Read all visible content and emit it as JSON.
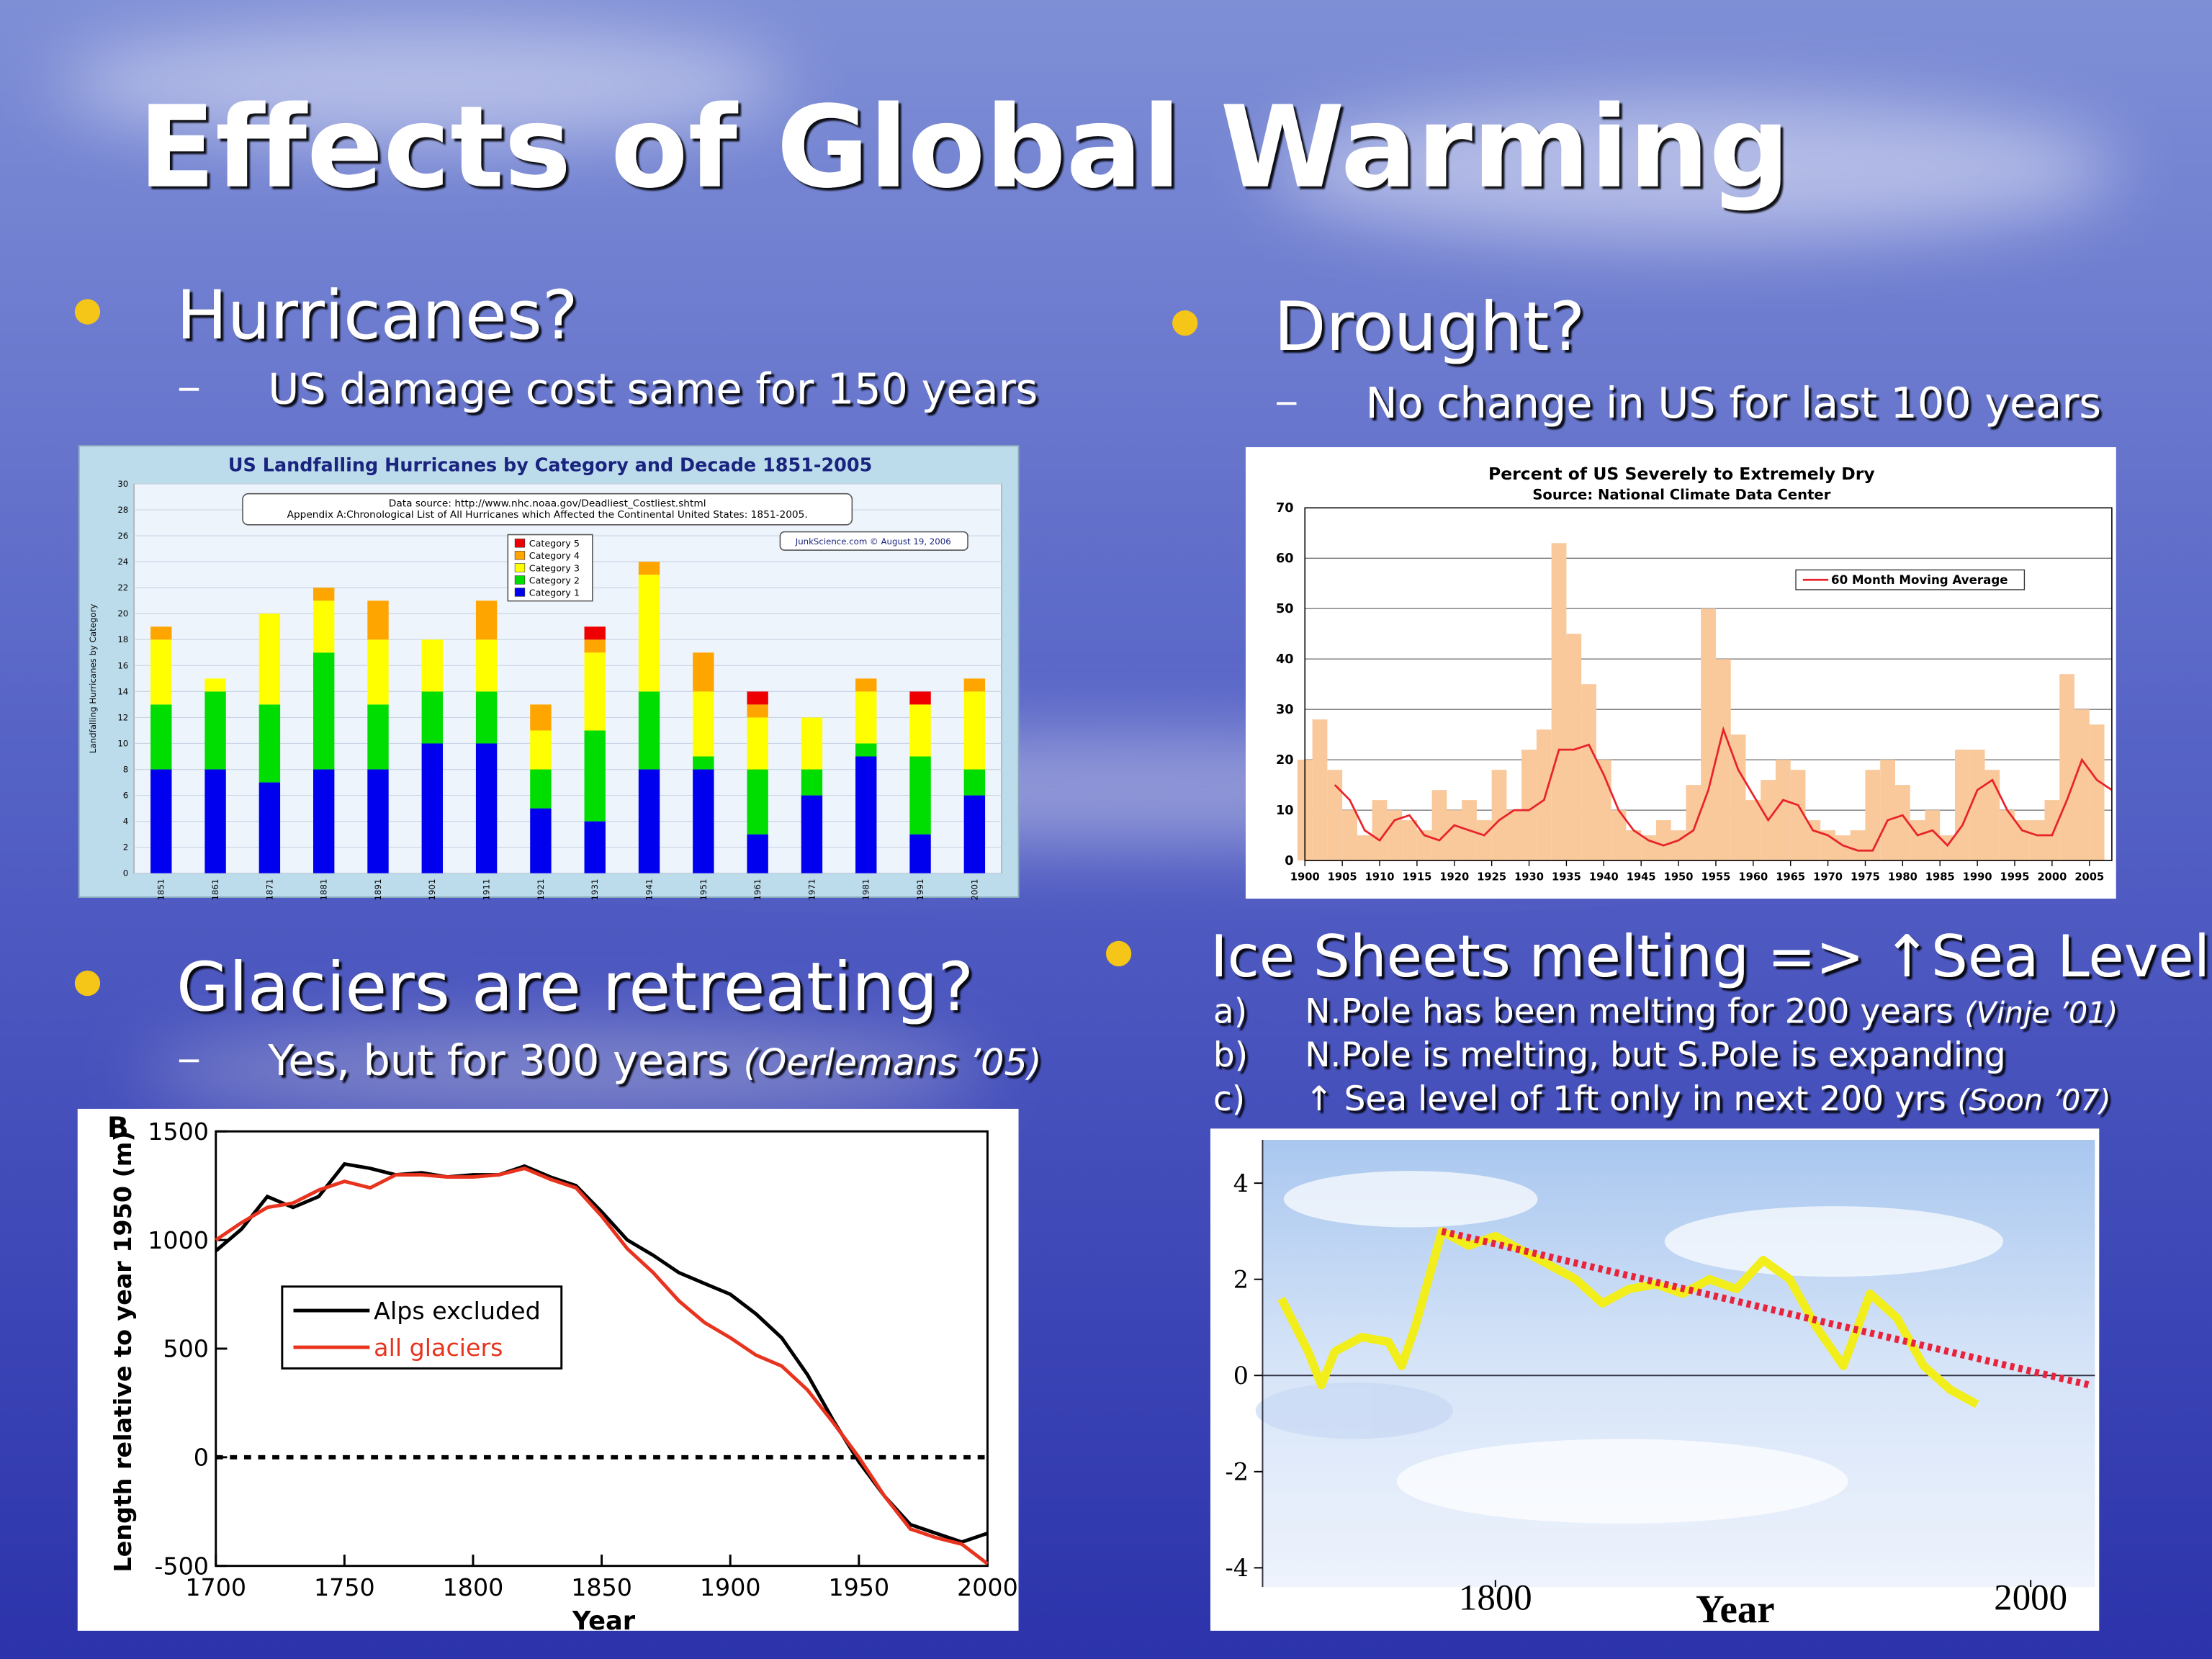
{
  "slide": {
    "title": "Effects of Global Warming",
    "bullets": [
      {
        "text": "Hurricanes?",
        "sub": "US damage cost same for 150 years"
      },
      {
        "text": "Drought?",
        "sub": "No change in US for last 100 years"
      },
      {
        "text": "Glaciers are retreating?",
        "sub": "Yes, but for 300 years",
        "cite": "(Oerlemans ’05)"
      },
      {
        "text": "Ice Sheets melting => ↑Sea Levels?",
        "items": [
          {
            "marker": "a)",
            "text": "N.Pole has been melting for 200 years",
            "cite": "(Vinje ’01)"
          },
          {
            "marker": "b)",
            "text": "N.Pole is melting, but S.Pole is expanding"
          },
          {
            "marker": "c)",
            "text": "↑ Sea level of 1ft only in next 200 yrs",
            "cite": "(Soon ’07)"
          }
        ]
      }
    ]
  },
  "chart_data": [
    {
      "type": "bar",
      "stacked": true,
      "title": "US Landfalling Hurricanes by Category and Decade 1851-2005",
      "notes": [
        "Data source: http://www.nhc.noaa.gov/Deadliest_Costliest.shtml",
        "Appendix A:Chronological List of All Hurricanes which Affected the Continental United States: 1851-2005."
      ],
      "credit": "JunkScience.com © August 19, 2006",
      "ylabel": "Landfalling Hurricanes by Category",
      "categories": [
        "1851",
        "1861",
        "1871",
        "1881",
        "1891",
        "1901",
        "1911",
        "1921",
        "1931",
        "1941",
        "1951",
        "1961",
        "1971",
        "1981",
        "1991",
        "2001"
      ],
      "series": [
        {
          "name": "Category 1",
          "color": "#0000ee",
          "values": [
            8,
            8,
            7,
            8,
            8,
            10,
            10,
            5,
            4,
            8,
            8,
            3,
            6,
            9,
            3,
            6
          ]
        },
        {
          "name": "Category 2",
          "color": "#00dd00",
          "values": [
            5,
            6,
            6,
            9,
            5,
            4,
            4,
            3,
            7,
            6,
            1,
            5,
            2,
            1,
            6,
            2
          ]
        },
        {
          "name": "Category 3",
          "color": "#ffff00",
          "values": [
            5,
            1,
            7,
            4,
            5,
            4,
            4,
            3,
            6,
            9,
            5,
            4,
            4,
            4,
            4,
            6
          ]
        },
        {
          "name": "Category 4",
          "color": "#ffa500",
          "values": [
            1,
            0,
            0,
            1,
            3,
            0,
            3,
            2,
            1,
            1,
            3,
            1,
            0,
            1,
            0,
            1
          ]
        },
        {
          "name": "Category 5",
          "color": "#ee0000",
          "values": [
            0,
            0,
            0,
            0,
            0,
            0,
            0,
            0,
            1,
            0,
            0,
            1,
            0,
            0,
            1,
            0
          ]
        }
      ],
      "ylim": [
        0,
        30
      ],
      "yticks": [
        0,
        2,
        4,
        6,
        8,
        10,
        12,
        14,
        16,
        18,
        20,
        22,
        24,
        26,
        28,
        30
      ],
      "grid": true
    },
    {
      "type": "line",
      "title": "Percent of US Severely to Extremely Dry",
      "subtitle": "Source:  National Climate Data Center",
      "background_bars": {
        "color": "#f9c89b",
        "x": [
          1900,
          1902,
          1904,
          1906,
          1908,
          1910,
          1912,
          1914,
          1916,
          1918,
          1920,
          1922,
          1924,
          1926,
          1928,
          1930,
          1932,
          1934,
          1936,
          1938,
          1940,
          1942,
          1944,
          1946,
          1948,
          1950,
          1952,
          1954,
          1956,
          1958,
          1960,
          1962,
          1964,
          1966,
          1968,
          1970,
          1972,
          1974,
          1976,
          1978,
          1980,
          1982,
          1984,
          1986,
          1988,
          1990,
          1992,
          1994,
          1996,
          1998,
          2000,
          2002,
          2004,
          2006
        ],
        "values": [
          20,
          28,
          18,
          10,
          5,
          12,
          10,
          8,
          6,
          14,
          10,
          12,
          8,
          18,
          10,
          22,
          26,
          63,
          45,
          35,
          20,
          10,
          6,
          5,
          8,
          6,
          15,
          50,
          40,
          25,
          12,
          16,
          20,
          18,
          8,
          6,
          5,
          6,
          18,
          20,
          15,
          8,
          10,
          5,
          22,
          22,
          18,
          10,
          8,
          8,
          12,
          37,
          30,
          27
        ]
      },
      "series": [
        {
          "name": "60 Month Moving Average",
          "color": "#e8232a",
          "x": [
            1904,
            1906,
            1908,
            1910,
            1912,
            1914,
            1916,
            1918,
            1920,
            1922,
            1924,
            1926,
            1928,
            1930,
            1932,
            1934,
            1936,
            1938,
            1940,
            1942,
            1944,
            1946,
            1948,
            1950,
            1952,
            1954,
            1956,
            1958,
            1960,
            1962,
            1964,
            1966,
            1968,
            1970,
            1972,
            1974,
            1976,
            1978,
            1980,
            1982,
            1984,
            1986,
            1988,
            1990,
            1992,
            1994,
            1996,
            1998,
            2000,
            2002,
            2004,
            2006,
            2008
          ],
          "values": [
            15,
            12,
            6,
            4,
            8,
            9,
            5,
            4,
            7,
            6,
            5,
            8,
            10,
            10,
            12,
            22,
            22,
            23,
            17,
            10,
            6,
            4,
            3,
            4,
            6,
            14,
            26,
            18,
            13,
            8,
            12,
            11,
            6,
            5,
            3,
            2,
            2,
            8,
            9,
            5,
            6,
            3,
            7,
            14,
            16,
            10,
            6,
            5,
            5,
            12,
            20,
            16,
            14
          ]
        }
      ],
      "xlim": [
        1900,
        2008
      ],
      "xticks": [
        1900,
        1905,
        1910,
        1915,
        1920,
        1925,
        1930,
        1935,
        1940,
        1945,
        1950,
        1955,
        1960,
        1965,
        1970,
        1975,
        1980,
        1985,
        1990,
        1995,
        2000,
        2005
      ],
      "ylim": [
        0,
        70
      ],
      "yticks": [
        0,
        10,
        20,
        30,
        40,
        50,
        60,
        70
      ],
      "grid": true
    },
    {
      "type": "line",
      "panel": "B",
      "ylabel": "Length relative to year 1950 (m)",
      "xlabel": "Year",
      "series": [
        {
          "name": "Alps excluded",
          "color": "#000000",
          "x": [
            1700,
            1710,
            1720,
            1730,
            1740,
            1750,
            1760,
            1770,
            1780,
            1790,
            1800,
            1810,
            1820,
            1830,
            1840,
            1850,
            1860,
            1870,
            1880,
            1890,
            1900,
            1910,
            1920,
            1930,
            1940,
            1950,
            1960,
            1970,
            1980,
            1990,
            2000
          ],
          "values": [
            950,
            1050,
            1200,
            1150,
            1200,
            1350,
            1330,
            1300,
            1310,
            1290,
            1300,
            1300,
            1340,
            1290,
            1250,
            1130,
            1000,
            930,
            850,
            800,
            750,
            660,
            550,
            380,
            170,
            -20,
            -180,
            -310,
            -350,
            -390,
            -350
          ]
        },
        {
          "name": "all glaciers",
          "color": "#e8331e",
          "x": [
            1700,
            1710,
            1720,
            1730,
            1740,
            1750,
            1760,
            1770,
            1780,
            1790,
            1800,
            1810,
            1820,
            1830,
            1840,
            1850,
            1860,
            1870,
            1880,
            1890,
            1900,
            1910,
            1920,
            1930,
            1940,
            1950,
            1960,
            1970,
            1980,
            1990,
            2000
          ],
          "values": [
            1000,
            1080,
            1150,
            1170,
            1230,
            1270,
            1240,
            1300,
            1300,
            1290,
            1290,
            1300,
            1330,
            1280,
            1240,
            1110,
            960,
            850,
            720,
            620,
            550,
            470,
            420,
            310,
            160,
            0,
            -180,
            -330,
            -370,
            -400,
            -490
          ]
        }
      ],
      "xlim": [
        1700,
        2000
      ],
      "xticks": [
        1700,
        1750,
        1800,
        1850,
        1900,
        1950,
        2000
      ],
      "ylim": [
        -500,
        1500
      ],
      "yticks": [
        -500,
        0,
        500,
        1000,
        1500
      ]
    },
    {
      "type": "line",
      "xlabel": "Year",
      "series": [
        {
          "color": "#f2ee1c",
          "x": [
            1720,
            1730,
            1735,
            1740,
            1750,
            1760,
            1765,
            1770,
            1780,
            1790,
            1800,
            1810,
            1820,
            1830,
            1840,
            1850,
            1860,
            1870,
            1880,
            1890,
            1900,
            1910,
            1920,
            1930,
            1940,
            1950,
            1960,
            1970,
            1980
          ],
          "values": [
            1.6,
            0.5,
            -0.2,
            0.5,
            0.8,
            0.7,
            0.2,
            1.0,
            3.0,
            2.7,
            2.9,
            2.6,
            2.3,
            2.0,
            1.5,
            1.8,
            1.9,
            1.7,
            2.0,
            1.8,
            2.4,
            2.0,
            1.0,
            0.2,
            1.7,
            1.2,
            0.2,
            -0.3,
            -0.6
          ]
        },
        {
          "color": "#e8233c",
          "dashed": true,
          "x": [
            1780,
            2022
          ],
          "values": [
            3.0,
            -0.2
          ]
        }
      ],
      "xlim": [
        1713,
        2024
      ],
      "xticks": [
        1800,
        2000
      ],
      "ylim": [
        -4.4,
        4.9
      ],
      "yticks": [
        4,
        2,
        0,
        -2,
        -4
      ]
    }
  ]
}
